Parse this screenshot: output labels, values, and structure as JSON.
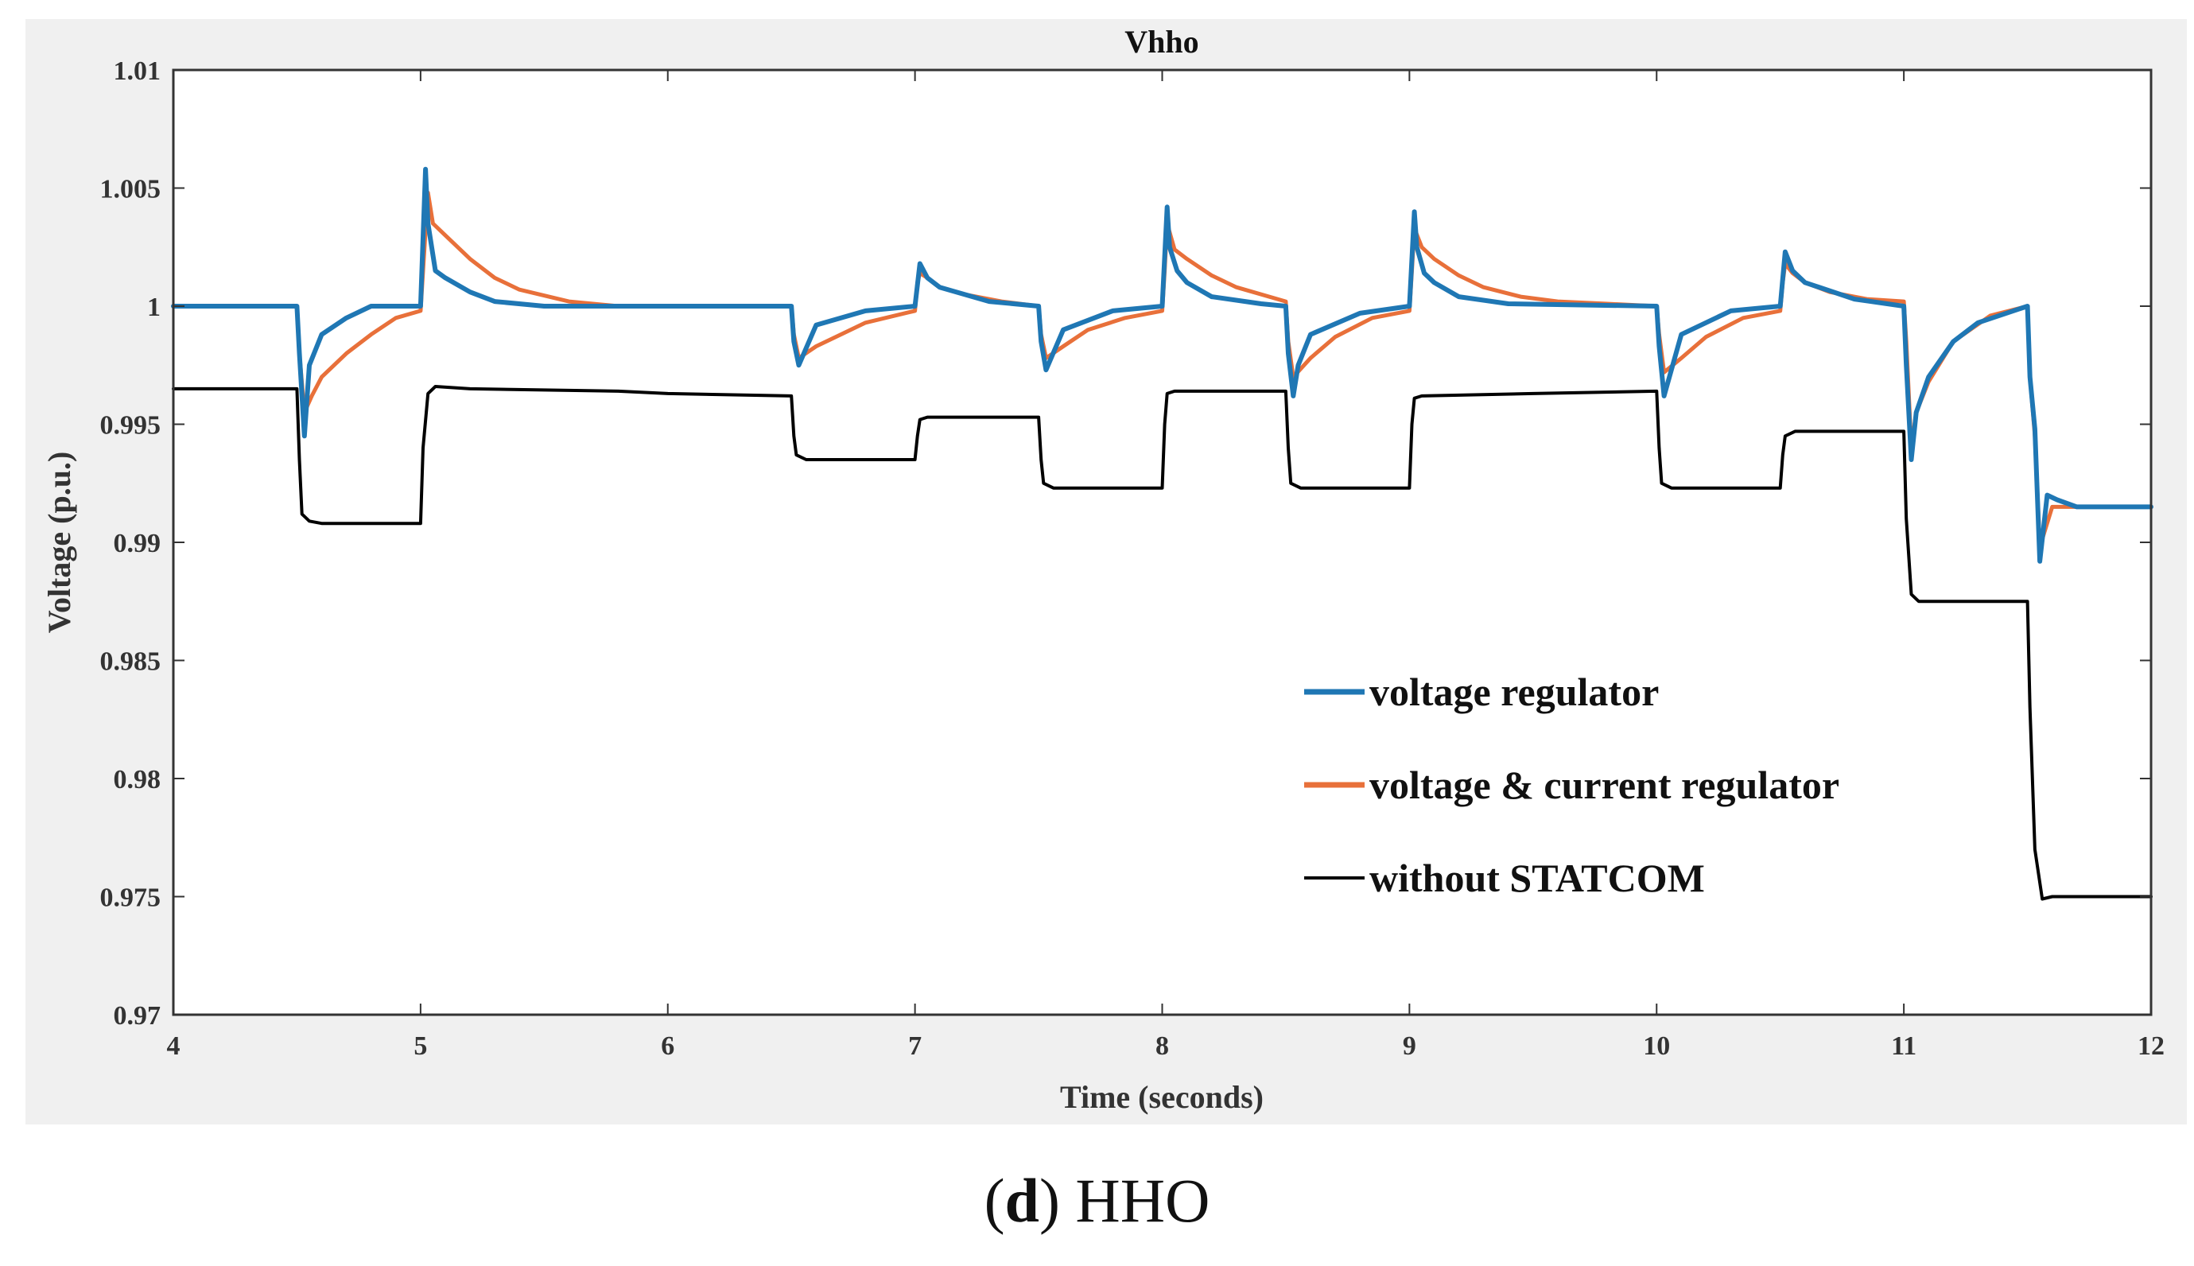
{
  "chart_data": {
    "type": "line",
    "title": "Vhho",
    "xlabel": "Time (seconds)",
    "ylabel": "Voltage (p.u.)",
    "xlim": [
      4,
      12
    ],
    "ylim": [
      0.97,
      1.01
    ],
    "xticks": [
      4,
      5,
      6,
      7,
      8,
      9,
      10,
      11,
      12
    ],
    "xtick_labels": [
      "4",
      "5",
      "6",
      "7",
      "8",
      "9",
      "10",
      "11",
      "12"
    ],
    "yticks": [
      0.97,
      0.975,
      0.98,
      0.985,
      0.99,
      0.995,
      1.0,
      1.005,
      1.01
    ],
    "ytick_labels": [
      "0.97",
      "0.975",
      "0.98",
      "0.985",
      "0.99",
      "0.995",
      "1",
      "1.005",
      "1.01"
    ],
    "legend_position": "lower-right",
    "series": [
      {
        "name": "voltage regulator",
        "color": "#1f77b4",
        "x": [
          4.0,
          4.5,
          4.51,
          4.53,
          4.55,
          4.6,
          4.7,
          4.8,
          5.0,
          5.02,
          5.03,
          5.06,
          5.1,
          5.2,
          5.3,
          5.5,
          6.0,
          6.5,
          6.51,
          6.53,
          6.6,
          6.8,
          7.0,
          7.02,
          7.05,
          7.1,
          7.3,
          7.5,
          7.51,
          7.53,
          7.6,
          7.8,
          8.0,
          8.02,
          8.03,
          8.06,
          8.1,
          8.2,
          8.4,
          8.5,
          8.51,
          8.53,
          8.55,
          8.6,
          8.8,
          9.0,
          9.02,
          9.03,
          9.06,
          9.1,
          9.2,
          9.4,
          10.0,
          10.01,
          10.03,
          10.1,
          10.3,
          10.5,
          10.52,
          10.55,
          10.6,
          10.8,
          11.0,
          11.01,
          11.03,
          11.05,
          11.1,
          11.2,
          11.3,
          11.5,
          11.51,
          11.53,
          11.55,
          11.58,
          11.62,
          11.7,
          12.0
        ],
        "values": [
          1.0,
          1.0,
          0.998,
          0.9945,
          0.9975,
          0.9988,
          0.9995,
          1.0,
          1.0,
          1.0058,
          1.0035,
          1.0015,
          1.0012,
          1.0006,
          1.0002,
          1.0,
          1.0,
          1.0,
          0.9985,
          0.9975,
          0.9992,
          0.9998,
          1.0,
          1.0018,
          1.0012,
          1.0008,
          1.0002,
          1.0,
          0.9985,
          0.9973,
          0.999,
          0.9998,
          1.0,
          1.0042,
          1.0025,
          1.0015,
          1.001,
          1.0004,
          1.0001,
          1.0,
          0.998,
          0.9962,
          0.9975,
          0.9988,
          0.9997,
          1.0,
          1.004,
          1.0025,
          1.0014,
          1.001,
          1.0004,
          1.0001,
          1.0,
          0.9983,
          0.9962,
          0.9988,
          0.9998,
          1.0,
          1.0023,
          1.0015,
          1.001,
          1.0003,
          1.0,
          0.9975,
          0.9935,
          0.9955,
          0.997,
          0.9985,
          0.9993,
          1.0,
          0.997,
          0.9948,
          0.9892,
          0.992,
          0.9918,
          0.9915,
          0.9915
        ]
      },
      {
        "name": "voltage & current regulator",
        "color": "#e8703a",
        "x": [
          4.0,
          4.5,
          4.51,
          4.53,
          4.56,
          4.6,
          4.7,
          4.8,
          4.9,
          5.0,
          5.02,
          5.03,
          5.05,
          5.1,
          5.2,
          5.3,
          5.4,
          5.6,
          5.8,
          6.5,
          6.51,
          6.53,
          6.6,
          6.7,
          6.8,
          7.0,
          7.01,
          7.02,
          7.05,
          7.1,
          7.2,
          7.35,
          7.5,
          7.51,
          7.53,
          7.6,
          7.7,
          7.85,
          8.0,
          8.01,
          8.02,
          8.05,
          8.1,
          8.2,
          8.3,
          8.5,
          8.51,
          8.53,
          8.6,
          8.7,
          8.85,
          9.0,
          9.01,
          9.02,
          9.05,
          9.1,
          9.2,
          9.3,
          9.45,
          9.6,
          9.8,
          10.0,
          10.01,
          10.03,
          10.1,
          10.2,
          10.35,
          10.5,
          10.51,
          10.52,
          10.55,
          10.6,
          10.7,
          10.85,
          11.0,
          11.01,
          11.03,
          11.05,
          11.1,
          11.2,
          11.35,
          11.5,
          11.51,
          11.53,
          11.55,
          11.6,
          11.7,
          12.0
        ],
        "values": [
          1.0,
          1.0,
          0.998,
          0.9955,
          0.9962,
          0.997,
          0.998,
          0.9988,
          0.9995,
          0.9998,
          1.0032,
          1.0048,
          1.0035,
          1.003,
          1.002,
          1.0012,
          1.0007,
          1.0002,
          1.0,
          1.0,
          0.9988,
          0.9978,
          0.9983,
          0.9988,
          0.9993,
          0.9998,
          1.001,
          1.0014,
          1.0012,
          1.0008,
          1.0005,
          1.0002,
          1.0,
          0.9988,
          0.9978,
          0.9983,
          0.999,
          0.9995,
          0.9998,
          1.0015,
          1.0035,
          1.0024,
          1.002,
          1.0013,
          1.0008,
          1.0002,
          0.9985,
          0.997,
          0.9978,
          0.9987,
          0.9995,
          0.9998,
          1.0015,
          1.0033,
          1.0025,
          1.002,
          1.0013,
          1.0008,
          1.0004,
          1.0002,
          1.0001,
          1.0,
          0.9988,
          0.9972,
          0.9978,
          0.9987,
          0.9995,
          0.9998,
          1.001,
          1.0018,
          1.0014,
          1.001,
          1.0006,
          1.0003,
          1.0002,
          0.9985,
          0.994,
          0.9955,
          0.9968,
          0.9985,
          0.9996,
          1.0,
          0.997,
          0.9945,
          0.9898,
          0.9915,
          0.9915,
          0.9915
        ]
      },
      {
        "name": "without STATCOM",
        "color": "#000000",
        "x": [
          4.0,
          4.5,
          4.51,
          4.52,
          4.55,
          4.6,
          5.0,
          5.01,
          5.03,
          5.06,
          5.2,
          5.8,
          6.0,
          6.5,
          6.51,
          6.52,
          6.56,
          7.0,
          7.01,
          7.02,
          7.05,
          7.5,
          7.51,
          7.52,
          7.56,
          8.0,
          8.01,
          8.02,
          8.05,
          8.5,
          8.51,
          8.52,
          8.56,
          9.0,
          9.01,
          9.02,
          9.05,
          9.5,
          10.0,
          10.01,
          10.02,
          10.06,
          10.5,
          10.51,
          10.52,
          10.56,
          11.0,
          11.01,
          11.03,
          11.06,
          11.5,
          11.51,
          11.53,
          11.56,
          11.6,
          12.0
        ],
        "values": [
          0.9965,
          0.9965,
          0.9935,
          0.9912,
          0.9909,
          0.9908,
          0.9908,
          0.994,
          0.9963,
          0.9966,
          0.9965,
          0.9964,
          0.9963,
          0.9962,
          0.9945,
          0.9937,
          0.9935,
          0.9935,
          0.9945,
          0.9952,
          0.9953,
          0.9953,
          0.9935,
          0.9925,
          0.9923,
          0.9923,
          0.995,
          0.9963,
          0.9964,
          0.9964,
          0.994,
          0.9925,
          0.9923,
          0.9923,
          0.995,
          0.9961,
          0.9962,
          0.9963,
          0.9964,
          0.994,
          0.9925,
          0.9923,
          0.9923,
          0.9937,
          0.9945,
          0.9947,
          0.9947,
          0.991,
          0.9878,
          0.9875,
          0.9875,
          0.983,
          0.977,
          0.9749,
          0.975,
          0.975
        ]
      }
    ]
  },
  "caption": {
    "letter": "d",
    "text": " HHO"
  }
}
